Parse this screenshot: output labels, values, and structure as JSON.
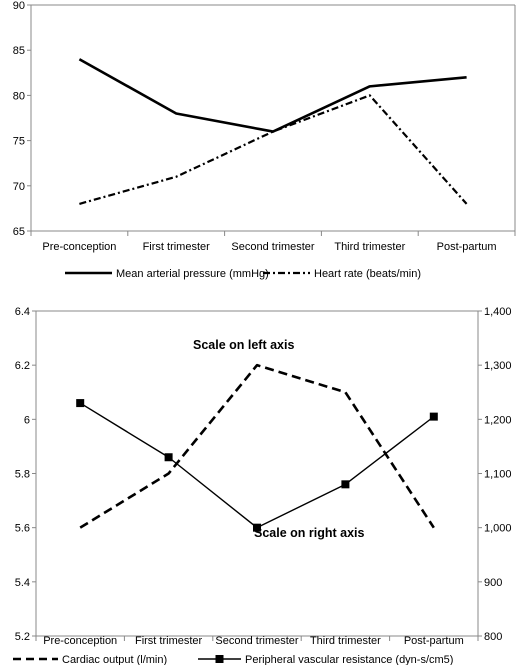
{
  "chart_data": [
    {
      "type": "line",
      "categories": [
        "Pre-conception",
        "First trimester",
        "Second trimester",
        "Third trimester",
        "Post-partum"
      ],
      "ylim": [
        65,
        90
      ],
      "yticks": [
        "65",
        "70",
        "75",
        "80",
        "85",
        "90"
      ],
      "grid": false,
      "legend_position": "bottom",
      "series": [
        {
          "name": "Mean arterial pressure (mmHg)",
          "values": [
            84,
            78,
            76,
            81,
            82
          ],
          "style": "solid",
          "color": "#000000"
        },
        {
          "name": "Heart rate (beats/min)",
          "values": [
            68,
            71,
            76,
            80,
            68
          ],
          "style": "dash-dot",
          "color": "#000000"
        }
      ]
    },
    {
      "type": "line",
      "categories": [
        "Pre-conception",
        "First trimester",
        "Second trimester",
        "Third trimester",
        "Post-partum"
      ],
      "ylim": [
        5.2,
        6.4
      ],
      "yticks": [
        "5.2",
        "5.4",
        "5.6",
        "5.8",
        "6",
        "6.2",
        "6.4"
      ],
      "y2lim": [
        800,
        1400
      ],
      "y2ticks": [
        "800",
        "900",
        "1,000",
        "1,100",
        "1,200",
        "1,300",
        "1,400"
      ],
      "grid": false,
      "legend_position": "bottom",
      "annotations": [
        "Scale on left axis",
        "Scale on right axis"
      ],
      "series": [
        {
          "name": "Cardiac output (l/min)",
          "axis": "left",
          "values": [
            5.6,
            5.8,
            6.2,
            6.1,
            5.6
          ],
          "style": "dashed",
          "color": "#000000"
        },
        {
          "name": "Peripheral vascular resistance (dyn-s/cm5)",
          "axis": "right",
          "values": [
            1230,
            1130,
            1000,
            1080,
            1205
          ],
          "style": "solid-square-markers",
          "color": "#000000"
        }
      ]
    }
  ]
}
